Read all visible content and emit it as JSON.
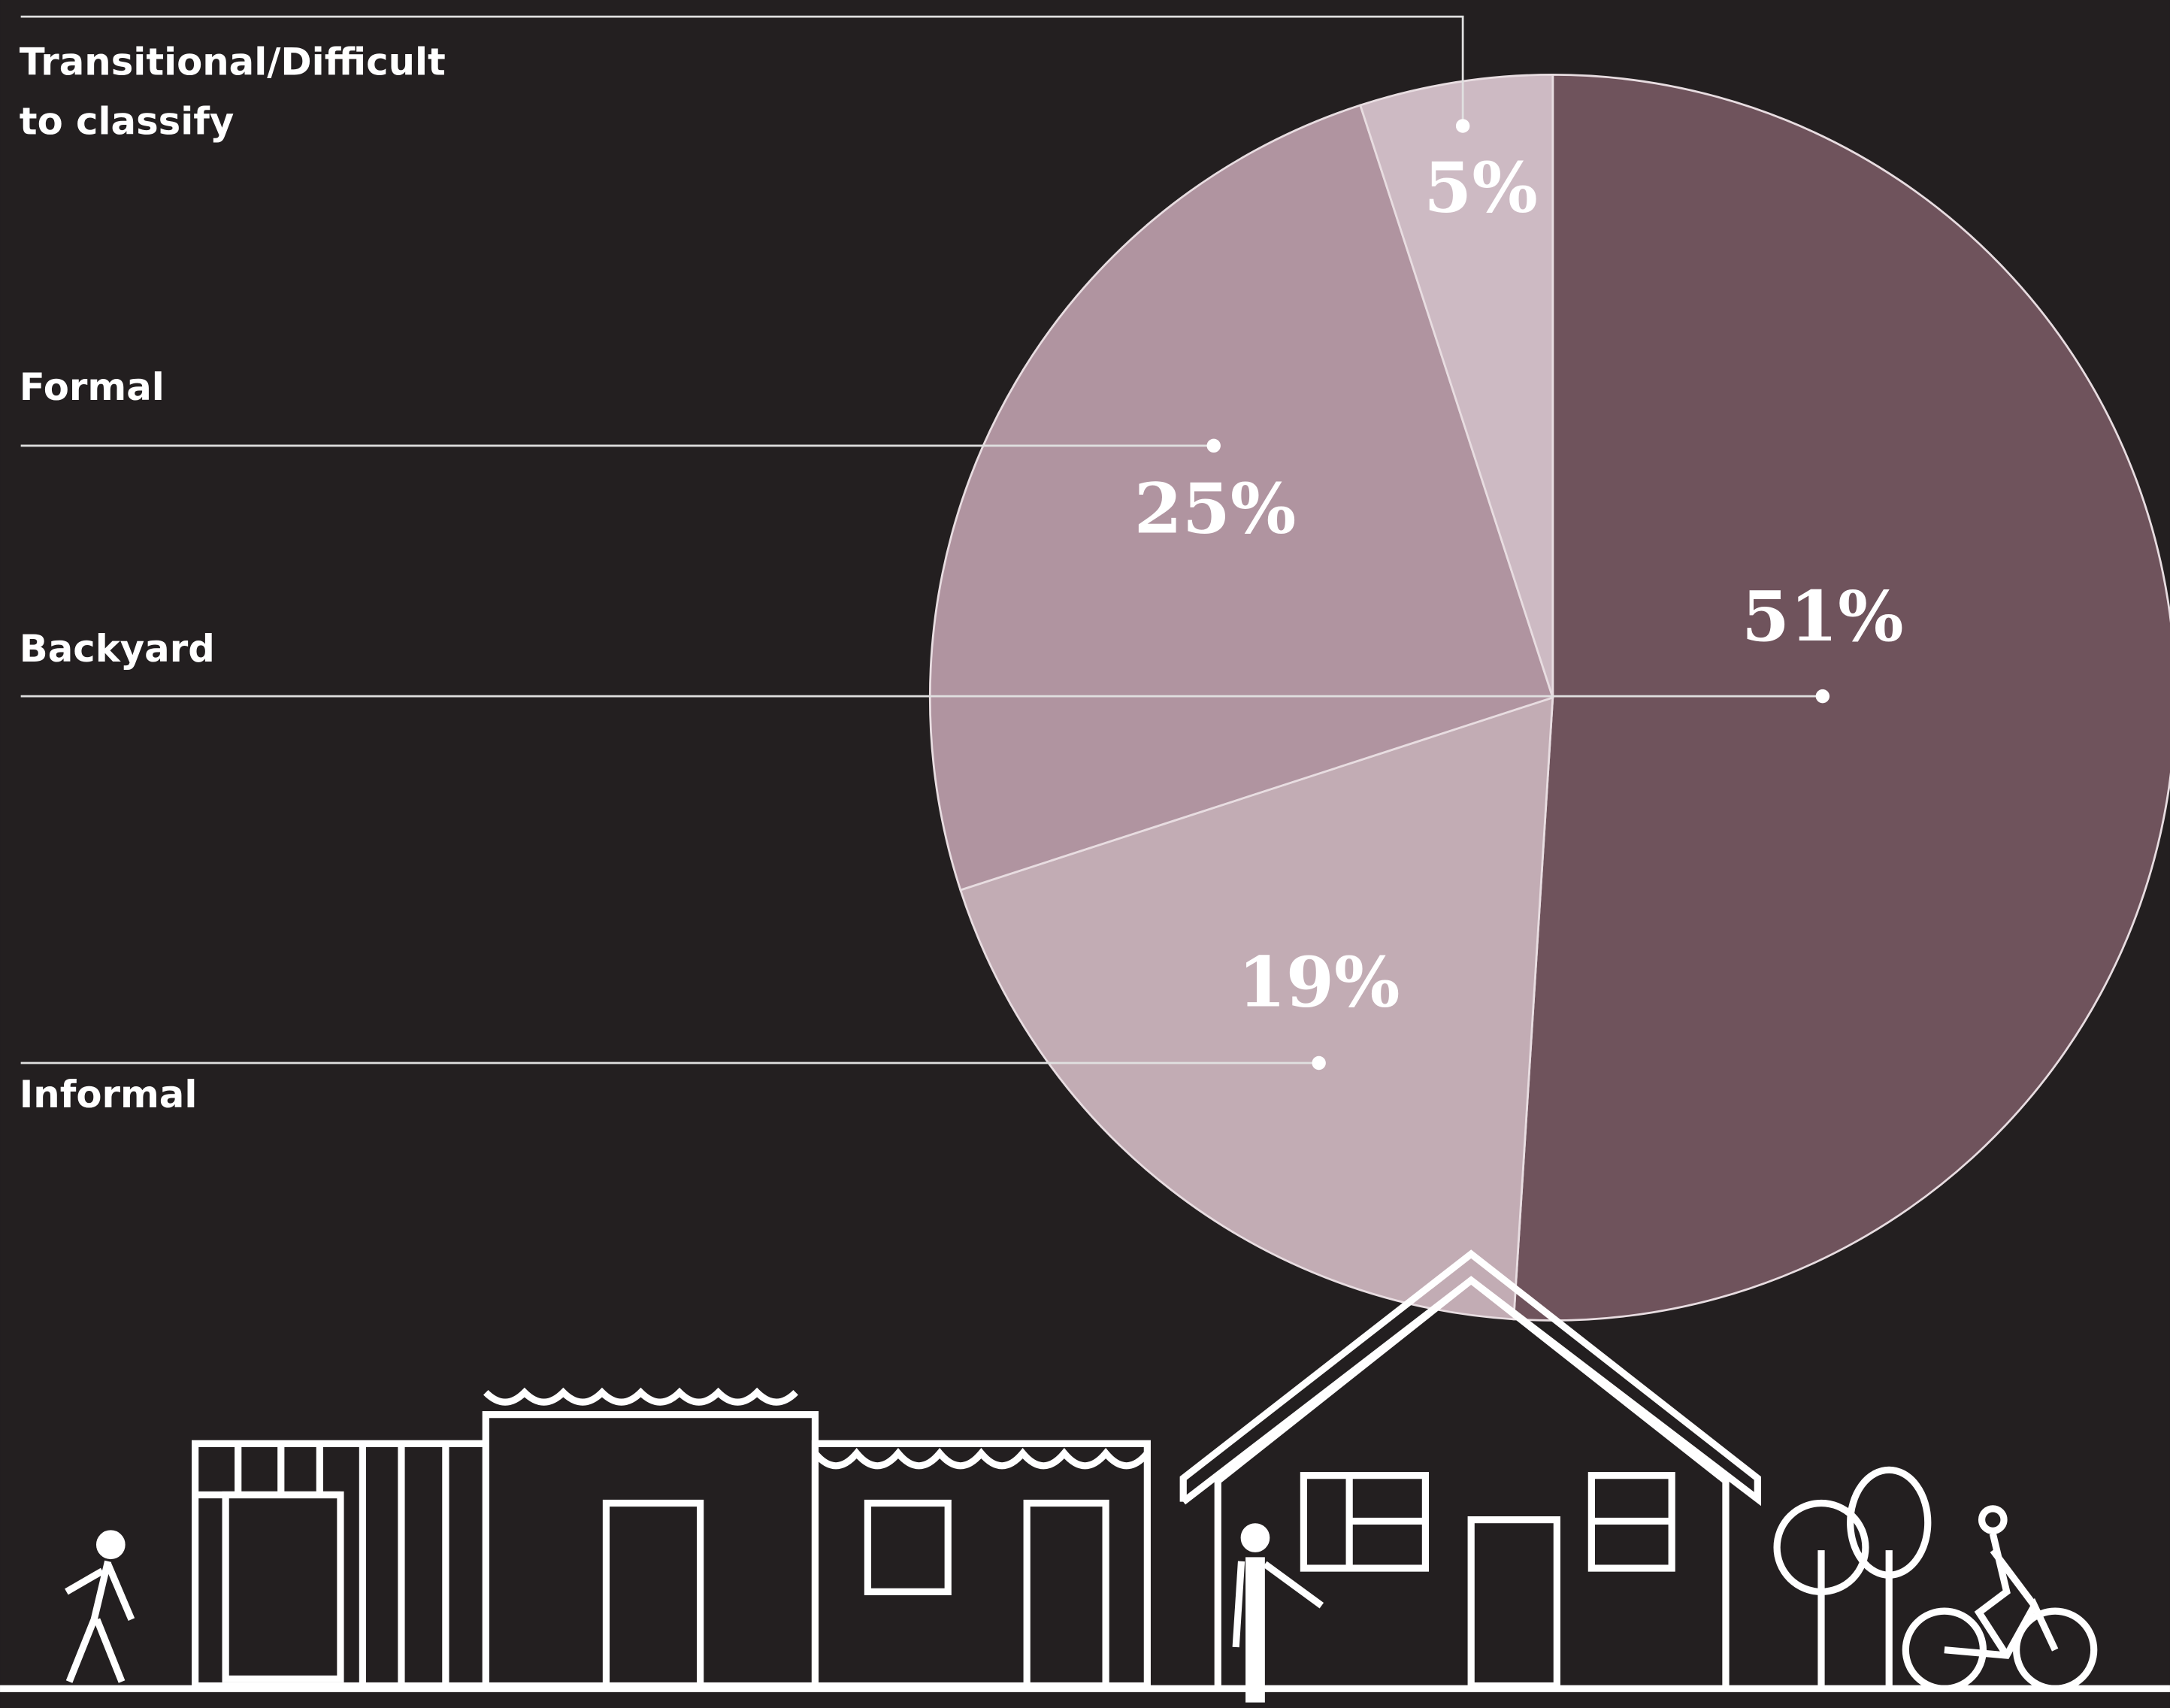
{
  "chart_data": {
    "type": "pie",
    "categories": [
      "Backyard",
      "Informal",
      "Formal",
      "Transitional/Difficult to classify"
    ],
    "values": [
      51,
      19,
      25,
      5
    ],
    "value_labels": [
      "51%",
      "19%",
      "25%",
      "5%"
    ],
    "colors": [
      "#6f535c",
      "#c2acb4",
      "#b094a0",
      "#cdbac3"
    ]
  }
}
